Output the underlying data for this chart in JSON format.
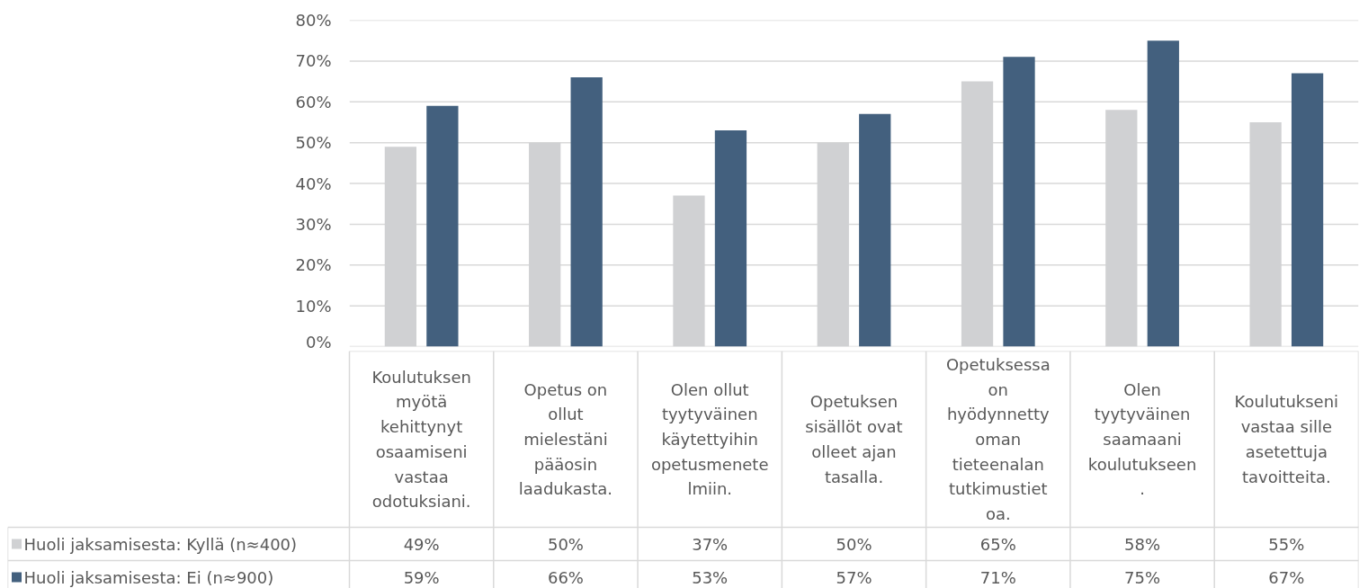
{
  "chart_data": {
    "type": "bar",
    "categories": [
      "Koulutuksen myötä kehittynyt osaamiseni vastaa odotuksiani.",
      "Opetus on ollut mielestäni pääosin laadukasta.",
      "Olen ollut tyytyväinen käytettyihin opetusmenetelmiin.",
      "Opetuksen sisällöt ovat olleet ajan tasalla.",
      "Opetuksessa on hyödynnetty oman tieteenalan tutkimustietoa.",
      "Olen tyytyväinen saamaani koulutukseen.",
      "Koulutukseni vastaa sille asetettuja tavoitteita."
    ],
    "series": [
      {
        "name": "Huoli jaksamisesta: Kyllä (n≈400)",
        "color": "#d0d1d3",
        "values": [
          49,
          50,
          37,
          50,
          65,
          58,
          55
        ],
        "value_labels": [
          "49%",
          "50%",
          "37%",
          "50%",
          "65%",
          "58%",
          "55%"
        ]
      },
      {
        "name": "Huoli jaksamisesta: Ei (n≈900)",
        "color": "#43607e",
        "values": [
          59,
          66,
          53,
          57,
          71,
          75,
          67
        ],
        "value_labels": [
          "59%",
          "66%",
          "53%",
          "57%",
          "71%",
          "75%",
          "67%"
        ]
      }
    ],
    "ylim": [
      0,
      80
    ],
    "yticks": [
      {
        "value": 0,
        "label": "0%"
      },
      {
        "value": 10,
        "label": "10%"
      },
      {
        "value": 20,
        "label": "20%"
      },
      {
        "value": 30,
        "label": "30%"
      },
      {
        "value": 40,
        "label": "40%"
      },
      {
        "value": 50,
        "label": "50%"
      },
      {
        "value": 60,
        "label": "60%"
      },
      {
        "value": 70,
        "label": "70%"
      },
      {
        "value": 80,
        "label": "80%"
      }
    ],
    "grid": "y",
    "legend": "bottom"
  }
}
